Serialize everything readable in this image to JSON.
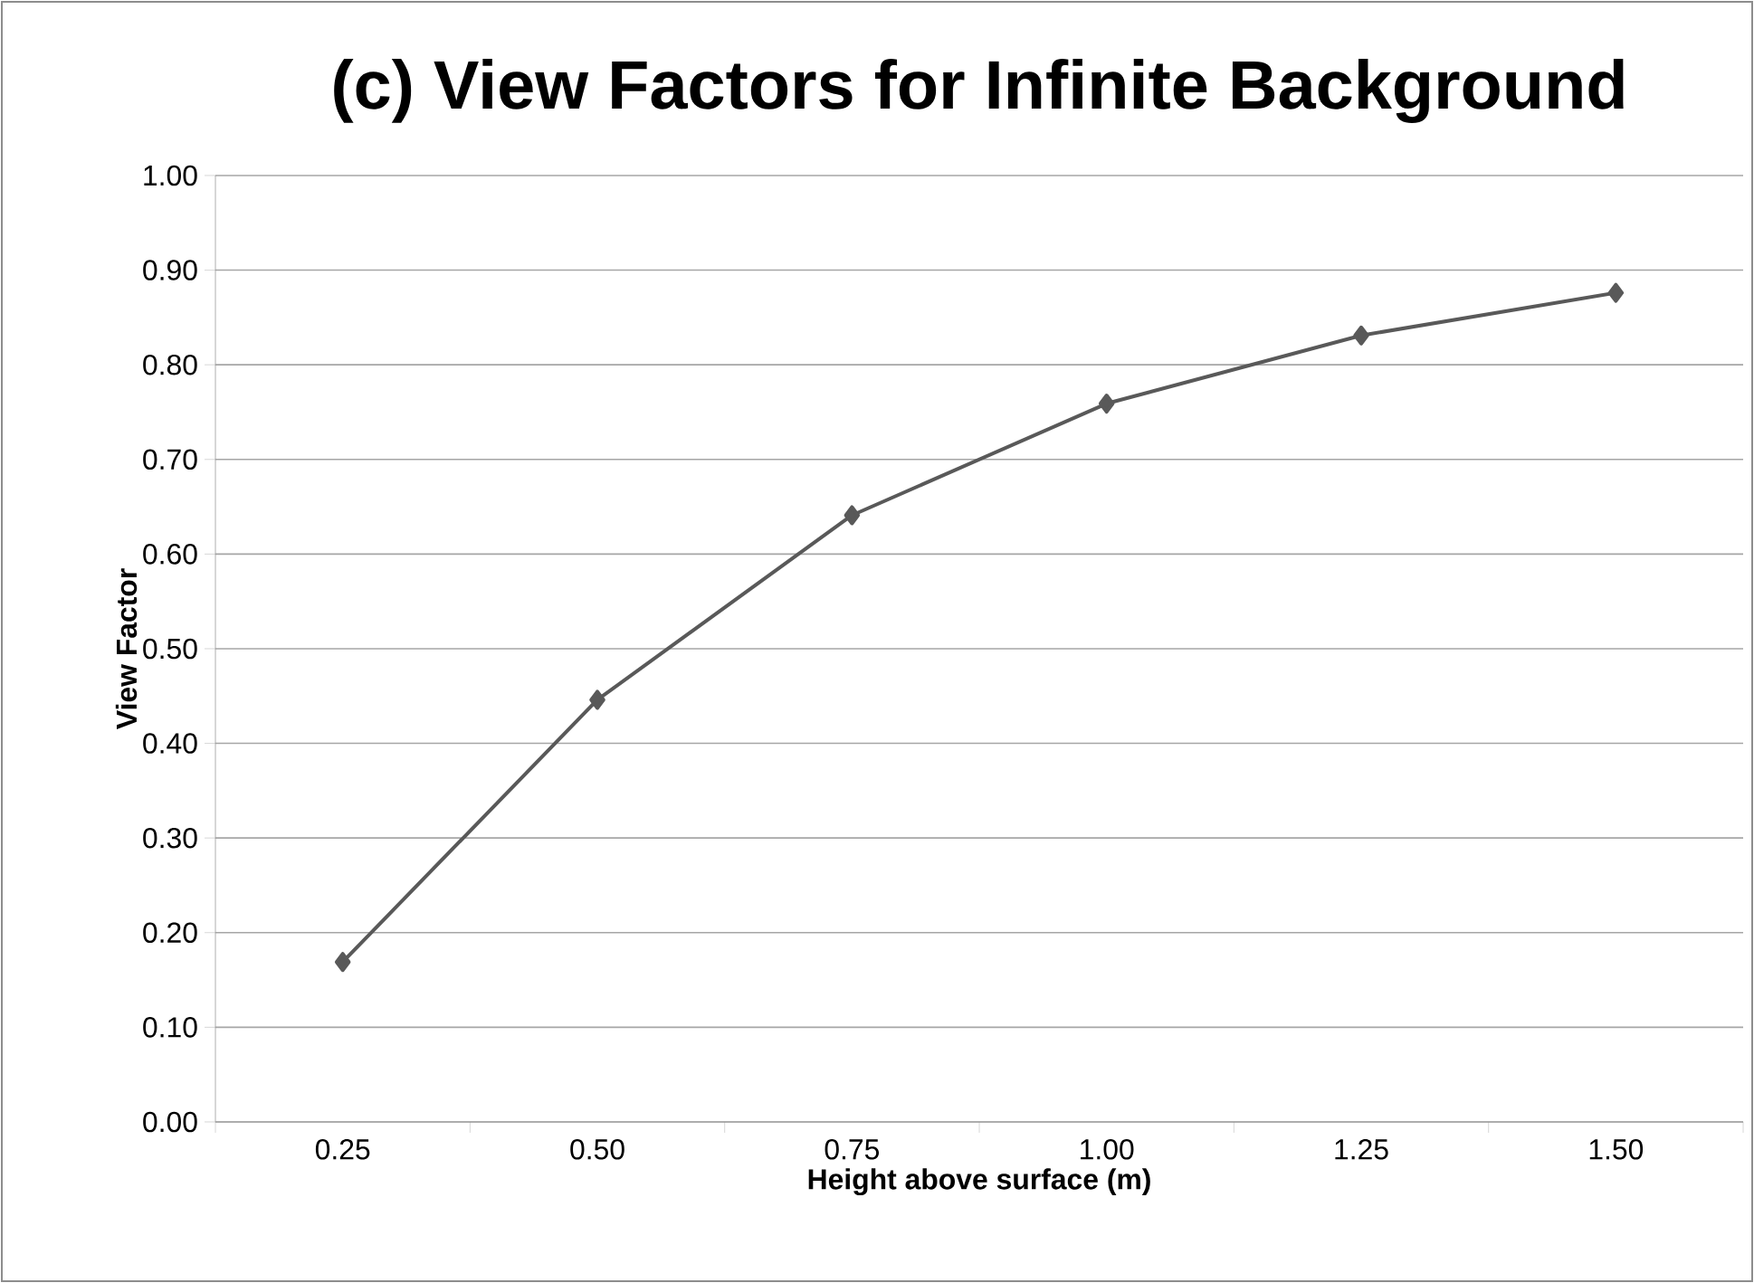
{
  "chart_data": {
    "type": "line",
    "title": "(c) View Factors for Infinite Background",
    "xlabel": "Height above surface (m)",
    "ylabel": "View Factor",
    "categories": [
      "0.25",
      "0.50",
      "0.75",
      "1.00",
      "1.25",
      "1.50"
    ],
    "series": [
      {
        "color": "#595959",
        "values": [
          0.169,
          0.446,
          0.641,
          0.759,
          0.831,
          0.876
        ]
      }
    ],
    "ylim": [
      0,
      1
    ],
    "yticks": [
      {
        "value": 0,
        "label": "0.00"
      },
      {
        "value": 0.1,
        "label": "0.10"
      },
      {
        "value": 0.2,
        "label": "0.20"
      },
      {
        "value": 0.3,
        "label": "0.30"
      },
      {
        "value": 0.4,
        "label": "0.40"
      },
      {
        "value": 0.5,
        "label": "0.50"
      },
      {
        "value": 0.6,
        "label": "0.60"
      },
      {
        "value": 0.7,
        "label": "0.70"
      },
      {
        "value": 0.8,
        "label": "0.80"
      },
      {
        "value": 0.9,
        "label": "0.90"
      },
      {
        "value": 1,
        "label": "1.00"
      }
    ],
    "grid": "y",
    "marker": "diamond",
    "line_style": "solid"
  }
}
